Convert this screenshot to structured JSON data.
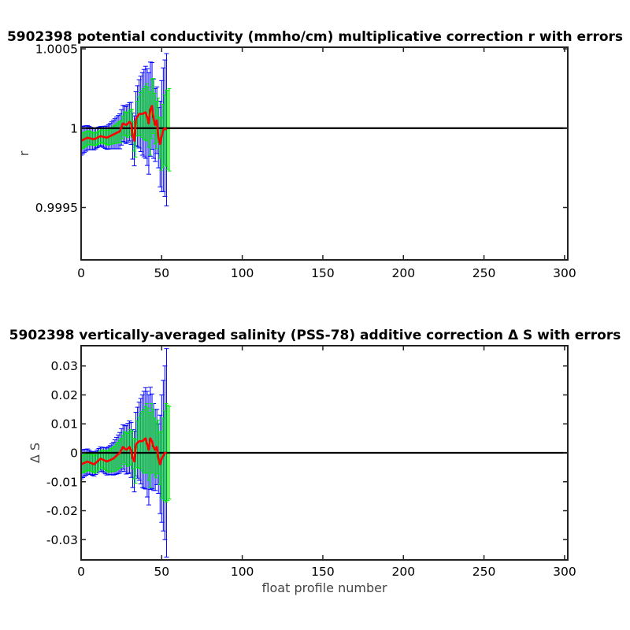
{
  "chart_data": [
    {
      "type": "line",
      "title": "5902398 potential conductivity (mmho/cm) multiplicative correction r with errors",
      "xlabel": "",
      "ylabel": "r",
      "xlim": [
        0,
        302
      ],
      "ylim": [
        0.99917,
        1.00051
      ],
      "xticks": [
        0,
        50,
        100,
        150,
        200,
        250,
        300
      ],
      "yticks": [
        0.9995,
        1,
        1.0005
      ],
      "ytick_labels": [
        "0.9995",
        "1",
        "1.0005"
      ],
      "reference_line": 1,
      "grid": false,
      "series": [
        {
          "role": "correction",
          "color": "#ff0000",
          "x": [
            0,
            4,
            8,
            12,
            16,
            20,
            24,
            26,
            28,
            30,
            31,
            32,
            33,
            34,
            36,
            38,
            40,
            41,
            42,
            43,
            44,
            45,
            46,
            47,
            48,
            49,
            50,
            51,
            52,
            53
          ],
          "y": [
            0.99992,
            0.99994,
            0.99993,
            0.99995,
            0.99994,
            0.99996,
            0.99998,
            1.00003,
            1.00002,
            1.00004,
            1.00003,
            0.99995,
            0.99992,
            1.00006,
            1.00009,
            1.00009,
            1.0001,
            1.00007,
            1.00003,
            1.00012,
            1.00014,
            1.00006,
            1.00002,
            1.00005,
            0.99994,
            0.9999,
            0.99995,
            0.99999,
            1.0,
            0.99999
          ]
        },
        {
          "role": "error-blue",
          "color": "#0000ff",
          "x": [
            0,
            6,
            12,
            18,
            24,
            30,
            34,
            38,
            42,
            45,
            48,
            50,
            52,
            53
          ],
          "err": [
            9e-05,
            7e-05,
            6e-05,
            8e-05,
            0.00011,
            0.00012,
            0.00017,
            0.00026,
            0.00032,
            0.00025,
            0.00019,
            0.00035,
            0.00043,
            0.00048
          ]
        },
        {
          "role": "error-green",
          "color": "#00ee00",
          "x": [
            0,
            6,
            12,
            18,
            24,
            30,
            34,
            38,
            42,
            45,
            48,
            50,
            52,
            54
          ],
          "err": [
            5e-05,
            4e-05,
            4e-05,
            5e-05,
            7e-05,
            8e-05,
            0.00011,
            0.00016,
            0.0002,
            0.00016,
            0.00013,
            0.0002,
            0.00024,
            0.00026
          ]
        }
      ]
    },
    {
      "type": "line",
      "title": "5902398 vertically-averaged salinity (PSS-78) additive correction Δ S with errors",
      "xlabel": "float profile number",
      "ylabel": "Δ S",
      "xlim": [
        0,
        302
      ],
      "ylim": [
        -0.037,
        0.037
      ],
      "xticks": [
        0,
        50,
        100,
        150,
        200,
        250,
        300
      ],
      "yticks": [
        -0.03,
        -0.02,
        -0.01,
        0,
        0.01,
        0.02,
        0.03
      ],
      "ytick_labels": [
        "-0.03",
        "-0.02",
        "-0.01",
        "0",
        "0.01",
        "0.02",
        "0.03"
      ],
      "reference_line": 0,
      "grid": false,
      "series": [
        {
          "role": "correction",
          "color": "#ff0000",
          "x": [
            0,
            4,
            8,
            12,
            16,
            20,
            24,
            26,
            28,
            30,
            31,
            32,
            33,
            34,
            36,
            38,
            40,
            41,
            42,
            43,
            44,
            45,
            46,
            47,
            48,
            49,
            50,
            51,
            52,
            53
          ],
          "y": [
            -0.004,
            -0.003,
            -0.004,
            -0.002,
            -0.003,
            -0.002,
            0.0,
            0.002,
            0.001,
            0.002,
            0.001,
            -0.002,
            -0.003,
            0.003,
            0.004,
            0.004,
            0.005,
            0.003,
            0.001,
            0.005,
            0.004,
            0.002,
            0.001,
            0.002,
            -0.002,
            -0.004,
            -0.002,
            -0.001,
            0.0,
            0.0
          ]
        },
        {
          "role": "error-blue",
          "color": "#0000ff",
          "x": [
            0,
            6,
            12,
            18,
            24,
            30,
            34,
            38,
            42,
            45,
            48,
            50,
            52,
            53
          ],
          "err": [
            0.005,
            0.004,
            0.004,
            0.005,
            0.007,
            0.009,
            0.011,
            0.016,
            0.019,
            0.015,
            0.012,
            0.022,
            0.03,
            0.036
          ]
        },
        {
          "role": "error-green",
          "color": "#00ee00",
          "x": [
            0,
            6,
            12,
            18,
            24,
            30,
            34,
            38,
            42,
            45,
            48,
            50,
            52,
            54
          ],
          "err": [
            0.003,
            0.003,
            0.003,
            0.004,
            0.005,
            0.006,
            0.008,
            0.011,
            0.013,
            0.01,
            0.009,
            0.014,
            0.017,
            0.016
          ]
        }
      ]
    }
  ],
  "colors": {
    "axes": "#000000",
    "reference_line": "#000000",
    "correction": "#ff0000",
    "error_blue": "#0000ff",
    "error_green": "#00ee00"
  }
}
